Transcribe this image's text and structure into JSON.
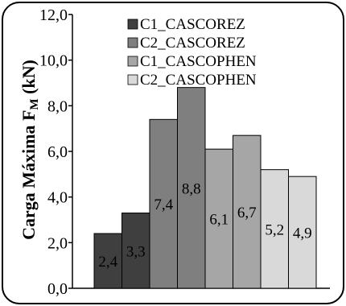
{
  "chart_data": {
    "type": "bar",
    "title": "",
    "xlabel": "",
    "ylabel": "Carga Máxima F",
    "ylabel_subscript": "M",
    "ylabel_unit": " (kN)",
    "ylim": [
      0,
      12
    ],
    "yticks": [
      0,
      2,
      4,
      6,
      8,
      10,
      12
    ],
    "ytick_labels": [
      "0,0",
      "2,0",
      "4,0",
      "6,0",
      "8,0",
      "10,0",
      "12,0"
    ],
    "grid": false,
    "legend_position": "top",
    "series": [
      {
        "name": "C1_CASCOREZ",
        "color": "#3f3f3f",
        "values": [
          2.4,
          3.3
        ],
        "labels": [
          "2,4",
          "3,3"
        ]
      },
      {
        "name": "C2_CASCOREZ",
        "color": "#7f7f7f",
        "values": [
          7.4,
          8.8
        ],
        "labels": [
          "7,4",
          "8,8"
        ]
      },
      {
        "name": "C1_CASCOPHEN",
        "color": "#a6a6a6",
        "values": [
          6.1,
          6.7
        ],
        "labels": [
          "6,1",
          "6,7"
        ]
      },
      {
        "name": "C2_CASCOPHEN",
        "color": "#d9d9d9",
        "values": [
          5.2,
          4.9
        ],
        "labels": [
          "5,2",
          "4,9"
        ]
      }
    ]
  }
}
